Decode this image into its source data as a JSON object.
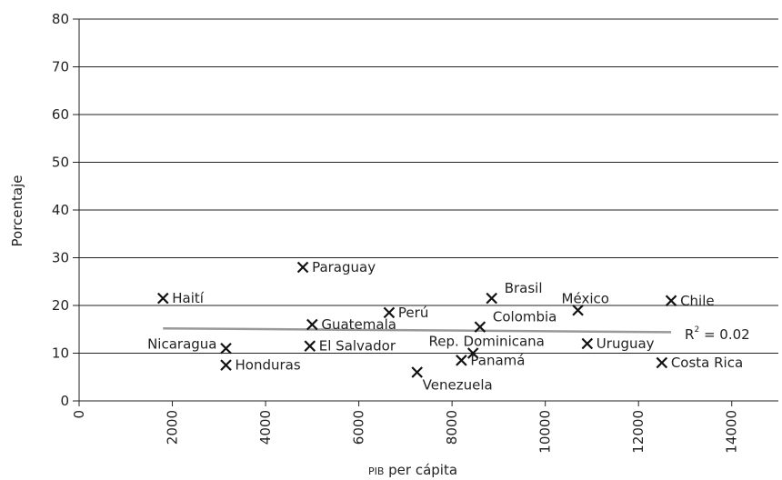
{
  "chart_data": {
    "type": "scatter",
    "xlabel": {
      "prefix": "PIB",
      "main": " per cápita"
    },
    "ylabel": "Porcentaje",
    "xlim": [
      0,
      15000
    ],
    "ylim": [
      0,
      80
    ],
    "x_ticks": [
      "0",
      "2000",
      "4000",
      "6000",
      "8000",
      "10000",
      "12000",
      "14000"
    ],
    "y_ticks": [
      "0",
      "10",
      "20",
      "30",
      "40",
      "50",
      "60",
      "70",
      "80"
    ],
    "y_gridlines": true,
    "marker": "x",
    "marker_color": "#111111",
    "points": [
      {
        "label": "Haití",
        "x": 1800,
        "y": 21.5,
        "label_side": "right"
      },
      {
        "label": "Nicaragua",
        "x": 3150,
        "y": 11,
        "label_side": "left"
      },
      {
        "label": "Honduras",
        "x": 3150,
        "y": 7.5,
        "label_side": "right"
      },
      {
        "label": "Paraguay",
        "x": 4800,
        "y": 28,
        "label_side": "right"
      },
      {
        "label": "Guatemala",
        "x": 5000,
        "y": 16,
        "label_side": "right"
      },
      {
        "label": "El Salvador",
        "x": 4950,
        "y": 11.5,
        "label_side": "right"
      },
      {
        "label": "Perú",
        "x": 6650,
        "y": 18.5,
        "label_side": "right"
      },
      {
        "label": "Venezuela",
        "x": 7250,
        "y": 6,
        "label_side": "below-right"
      },
      {
        "label": "Panamá",
        "x": 8200,
        "y": 8.5,
        "label_side": "right"
      },
      {
        "label": "Rep. Dominicana",
        "x": 8450,
        "y": 10,
        "label_side": "above"
      },
      {
        "label": "Colombia",
        "x": 8600,
        "y": 15.5,
        "label_side": "above-right"
      },
      {
        "label": "Brasil",
        "x": 8850,
        "y": 21.5,
        "label_side": "above-right"
      },
      {
        "label": "México",
        "x": 10700,
        "y": 19,
        "label_side": "above-left"
      },
      {
        "label": "Uruguay",
        "x": 10900,
        "y": 12,
        "label_side": "right"
      },
      {
        "label": "Costa Rica",
        "x": 12500,
        "y": 8,
        "label_side": "right"
      },
      {
        "label": "Chile",
        "x": 12700,
        "y": 21,
        "label_side": "right"
      }
    ],
    "trendline": {
      "x": [
        1800,
        12700
      ],
      "y": [
        15.2,
        14.4
      ],
      "color": "#999999"
    },
    "annotation": {
      "base": "R",
      "sup": "2",
      "rest": " = 0.02"
    }
  }
}
